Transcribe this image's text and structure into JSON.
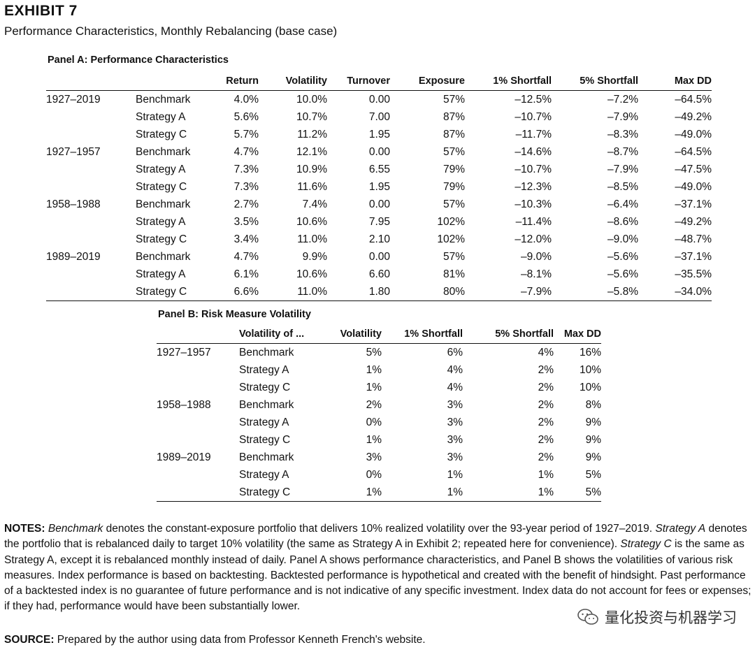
{
  "exhibit": {
    "title": "EXHIBIT 7",
    "subtitle": "Performance Characteristics, Monthly Rebalancing (base case)"
  },
  "panelA": {
    "title": "Panel A: Performance Characteristics",
    "headers": [
      "",
      "",
      "Return",
      "Volatility",
      "Turnover",
      "Exposure",
      "1% Shortfall",
      "5% Shortfall",
      "Max DD"
    ],
    "rows": [
      [
        "1927–2019",
        "Benchmark",
        "4.0%",
        "10.0%",
        "0.00",
        "57%",
        "–12.5%",
        "–7.2%",
        "–64.5%"
      ],
      [
        "",
        "Strategy A",
        "5.6%",
        "10.7%",
        "7.00",
        "87%",
        "–10.7%",
        "–7.9%",
        "–49.2%"
      ],
      [
        "",
        "Strategy C",
        "5.7%",
        "11.2%",
        "1.95",
        "87%",
        "–11.7%",
        "–8.3%",
        "–49.0%"
      ],
      [
        "1927–1957",
        "Benchmark",
        "4.7%",
        "12.1%",
        "0.00",
        "57%",
        "–14.6%",
        "–8.7%",
        "–64.5%"
      ],
      [
        "",
        "Strategy A",
        "7.3%",
        "10.9%",
        "6.55",
        "79%",
        "–10.7%",
        "–7.9%",
        "–47.5%"
      ],
      [
        "",
        "Strategy C",
        "7.3%",
        "11.6%",
        "1.95",
        "79%",
        "–12.3%",
        "–8.5%",
        "–49.0%"
      ],
      [
        "1958–1988",
        "Benchmark",
        "2.7%",
        "7.4%",
        "0.00",
        "57%",
        "–10.3%",
        "–6.4%",
        "–37.1%"
      ],
      [
        "",
        "Strategy A",
        "3.5%",
        "10.6%",
        "7.95",
        "102%",
        "–11.4%",
        "–8.6%",
        "–49.2%"
      ],
      [
        "",
        "Strategy C",
        "3.4%",
        "11.0%",
        "2.10",
        "102%",
        "–12.0%",
        "–9.0%",
        "–48.7%"
      ],
      [
        "1989–2019",
        "Benchmark",
        "4.7%",
        "9.9%",
        "0.00",
        "57%",
        "–9.0%",
        "–5.6%",
        "–37.1%"
      ],
      [
        "",
        "Strategy A",
        "6.1%",
        "10.6%",
        "6.60",
        "81%",
        "–8.1%",
        "–5.6%",
        "–35.5%"
      ],
      [
        "",
        "Strategy C",
        "6.6%",
        "11.0%",
        "1.80",
        "80%",
        "–7.9%",
        "–5.8%",
        "–34.0%"
      ]
    ]
  },
  "panelB": {
    "title": "Panel B: Risk Measure Volatility",
    "headers": [
      "",
      "Volatility of ...",
      "Volatility",
      "1% Shortfall",
      "5% Shortfall",
      "Max DD"
    ],
    "rows": [
      [
        "1927–1957",
        "Benchmark",
        "5%",
        "6%",
        "4%",
        "16%"
      ],
      [
        "",
        "Strategy A",
        "1%",
        "4%",
        "2%",
        "10%"
      ],
      [
        "",
        "Strategy C",
        "1%",
        "4%",
        "2%",
        "10%"
      ],
      [
        "1958–1988",
        "Benchmark",
        "2%",
        "3%",
        "2%",
        "8%"
      ],
      [
        "",
        "Strategy A",
        "0%",
        "3%",
        "2%",
        "9%"
      ],
      [
        "",
        "Strategy C",
        "1%",
        "3%",
        "2%",
        "9%"
      ],
      [
        "1989–2019",
        "Benchmark",
        "3%",
        "3%",
        "2%",
        "9%"
      ],
      [
        "",
        "Strategy A",
        "0%",
        "1%",
        "1%",
        "5%"
      ],
      [
        "",
        "Strategy C",
        "1%",
        "1%",
        "1%",
        "5%"
      ]
    ]
  },
  "notes": {
    "label": "NOTES:",
    "benchmark_term": "Benchmark",
    "text1": " denotes the constant-exposure portfolio that delivers 10% realized volatility over the 93-year period of 1927–2019. ",
    "strategyA_term": "Strategy A",
    "text2": " denotes the portfolio that is rebalanced daily to target 10% volatility (the same as Strategy A in Exhibit 2; repeated here for convenience). ",
    "strategyC_term": "Strategy C",
    "text3": " is the same as Strategy A, except it is rebalanced monthly instead of daily. Panel A shows performance characteristics, and Panel B shows the volatilities of various risk measures. Index performance is based on backtesting. Backtested performance is hypothetical and created with the benefit of hindsight. Past performance of a backtested index is no guarantee of future performance and is not indicative of any specific investment. Index data do not account for fees or expenses; if they had, performance would have been substantially lower."
  },
  "source": {
    "label": "SOURCE:",
    "text": " Prepared by the author using data from Professor Kenneth French's website."
  },
  "watermark": {
    "text": "量化投资与机器学习",
    "icon": "wechat-icon"
  }
}
